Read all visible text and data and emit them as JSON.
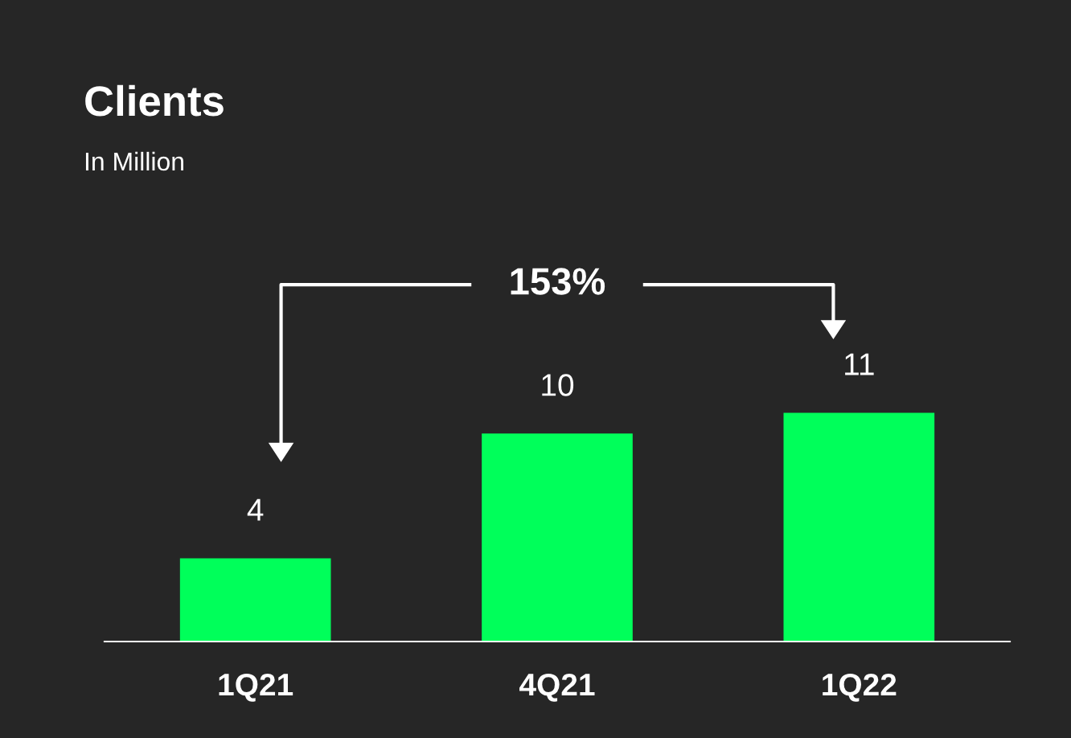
{
  "chart_data": {
    "type": "bar",
    "title": "Clients",
    "subtitle": "In Million",
    "categories": [
      "1Q21",
      "4Q21",
      "1Q22"
    ],
    "values": [
      4,
      10,
      11
    ],
    "color": "#00ff5a",
    "data_labels": true,
    "grid": false,
    "legend": false,
    "annotations": [
      "153%"
    ]
  }
}
